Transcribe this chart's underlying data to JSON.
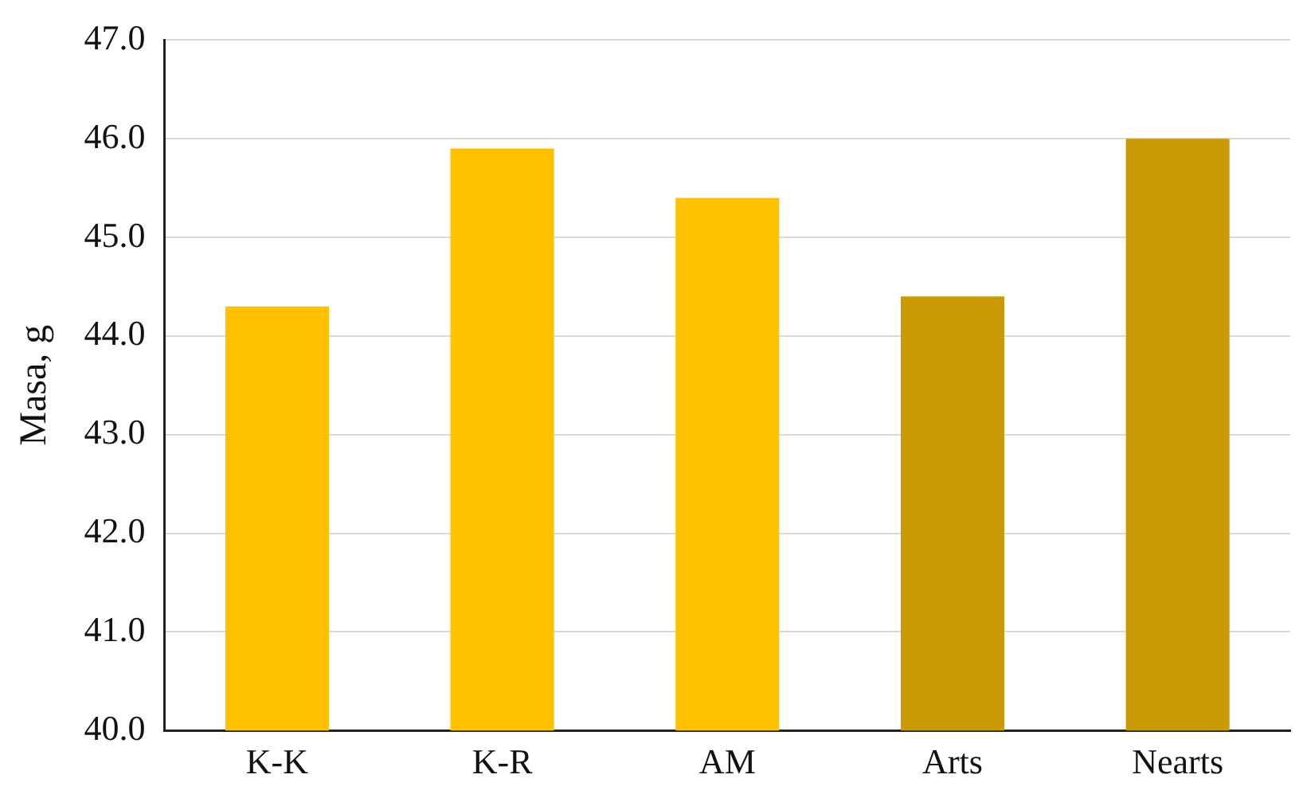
{
  "chart_data": {
    "type": "bar",
    "ylabel": "Masa, g",
    "categories": [
      "K-K",
      "K-R",
      "AM",
      "Arts",
      "Nearts"
    ],
    "values": [
      44.3,
      45.9,
      45.4,
      44.4,
      46.0
    ],
    "colors": [
      "#ffc000",
      "#ffc000",
      "#ffc000",
      "#c99a06",
      "#c99a06"
    ],
    "ylim": [
      40,
      47
    ],
    "yticks": [
      {
        "value": 40,
        "label": "40.0"
      },
      {
        "value": 41,
        "label": "41.0"
      },
      {
        "value": 42,
        "label": "42.0"
      },
      {
        "value": 43,
        "label": "43.0"
      },
      {
        "value": 44,
        "label": "44.0"
      },
      {
        "value": 45,
        "label": "45.0"
      },
      {
        "value": 46,
        "label": "46.0"
      },
      {
        "value": 47,
        "label": "47.0"
      }
    ],
    "grid": "y",
    "legend": false
  }
}
